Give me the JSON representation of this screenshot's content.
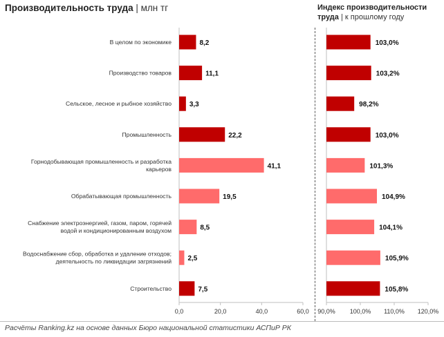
{
  "header": {
    "left_title": "Производительность труда",
    "left_sep": "|",
    "left_unit": "млн тг",
    "right_title_line1": "Индекс производительности",
    "right_title_line2": "труда",
    "right_sep": "|",
    "right_sub": "к прошлому году"
  },
  "source": "Расчёты Ranking.kz на основе данных Бюро национальной статистики АСПиР РК",
  "colors": {
    "dark": "#c00000",
    "light": "#ff6b6b",
    "axis": "#bfbfbf",
    "grid": "#d9d9d9"
  },
  "chart_data": [
    {
      "type": "bar",
      "orientation": "horizontal",
      "title": "Производительность труда",
      "unit": "млн тг",
      "categories": [
        [
          "В целом по экономике"
        ],
        [
          "Производство товаров"
        ],
        [
          "Сельское, лесное и рыбное хозяйство"
        ],
        [
          "Промышленность"
        ],
        [
          "Горнодобывающая промышленность и разработка",
          "карьеров"
        ],
        [
          "Обрабатывающая промышленность"
        ],
        [
          "Снабжение электроэнергией, газом, паром, горячей",
          "водой и кондиционированным воздухом"
        ],
        [
          "Водоснабжение сбор, обработка и удаление отходов;",
          "деятельность по ликвидации загрязнений"
        ],
        [
          "Строительство"
        ]
      ],
      "values": [
        8.2,
        11.1,
        3.3,
        22.2,
        41.1,
        19.5,
        8.5,
        2.5,
        7.5
      ],
      "value_labels": [
        "8,2",
        "11,1",
        "3,3",
        "22,2",
        "41,1",
        "19,5",
        "8,5",
        "2,5",
        "7,5"
      ],
      "bar_shade": [
        "dark",
        "dark",
        "dark",
        "dark",
        "light",
        "light",
        "light",
        "light",
        "dark"
      ],
      "xlim": [
        0,
        60
      ],
      "xticks": [
        0,
        20,
        40,
        60
      ],
      "xtick_labels": [
        "0,0",
        "20,0",
        "40,0",
        "60,0"
      ],
      "grid": false
    },
    {
      "type": "bar",
      "orientation": "horizontal",
      "title": "Индекс производительности труда",
      "unit": "к прошлому году",
      "values": [
        103.0,
        103.2,
        98.2,
        103.0,
        101.3,
        104.9,
        104.1,
        105.9,
        105.8
      ],
      "value_labels": [
        "103,0%",
        "103,2%",
        "98,2%",
        "103,0%",
        "101,3%",
        "104,9%",
        "104,1%",
        "105,9%",
        "105,8%"
      ],
      "bar_shade": [
        "dark",
        "dark",
        "dark",
        "dark",
        "light",
        "light",
        "light",
        "light",
        "dark"
      ],
      "xlim": [
        90,
        120
      ],
      "xticks": [
        90,
        100,
        110,
        120
      ],
      "xtick_labels": [
        "90,0%",
        "100,0%",
        "110,0%",
        "120,0%"
      ],
      "grid": false
    }
  ]
}
